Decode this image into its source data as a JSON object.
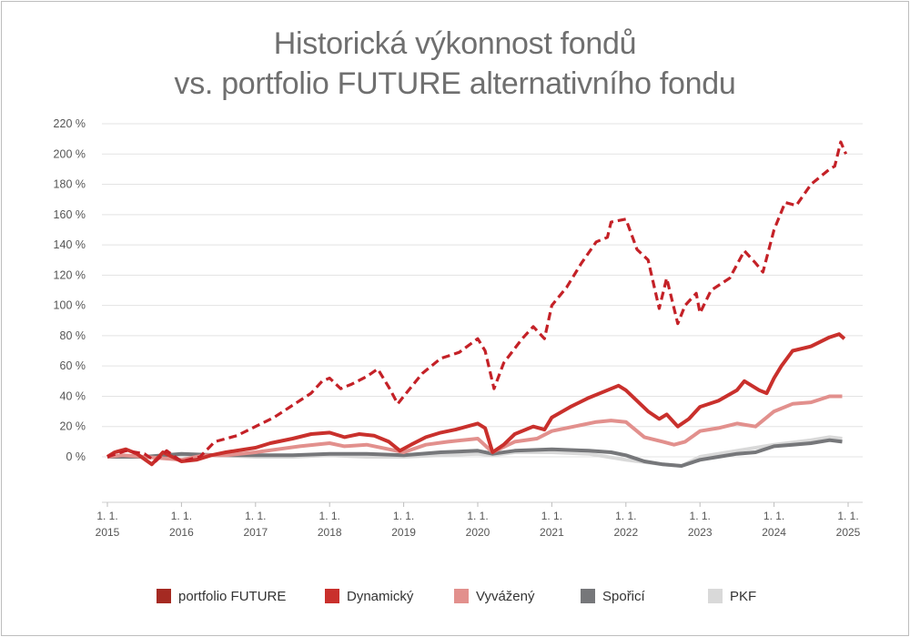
{
  "chart_data": {
    "type": "line",
    "title_lines": [
      "Historická výkonnost fondů",
      "vs. portfolio FUTURE alternativního fondu"
    ],
    "xlabel": "",
    "ylabel": "",
    "ylim": [
      0,
      220
    ],
    "xlim": [
      2015,
      2025
    ],
    "y_ticks": [
      {
        "value": 220,
        "label": "220 %"
      },
      {
        "value": 200,
        "label": "200 %"
      },
      {
        "value": 180,
        "label": "180 %"
      },
      {
        "value": 160,
        "label": "160 %"
      },
      {
        "value": 140,
        "label": "140 %"
      },
      {
        "value": 120,
        "label": "120 %"
      },
      {
        "value": 100,
        "label": "100 %"
      },
      {
        "value": 80,
        "label": "80 %"
      },
      {
        "value": 60,
        "label": "60 %"
      },
      {
        "value": 40,
        "label": "40 %"
      },
      {
        "value": 20,
        "label": "20 %"
      },
      {
        "value": 0,
        "label": "0 %"
      }
    ],
    "x_ticks": [
      {
        "value": 2015,
        "day": "1. 1.",
        "year": "2015"
      },
      {
        "value": 2016,
        "day": "1. 1.",
        "year": "2016"
      },
      {
        "value": 2017,
        "day": "1. 1.",
        "year": "2017"
      },
      {
        "value": 2018,
        "day": "1. 1.",
        "year": "2018"
      },
      {
        "value": 2019,
        "day": "1. 1.",
        "year": "2019"
      },
      {
        "value": 2020,
        "day": "1. 1.",
        "year": "2020"
      },
      {
        "value": 2021,
        "day": "1. 1.",
        "year": "2021"
      },
      {
        "value": 2022,
        "day": "1. 1.",
        "year": "2022"
      },
      {
        "value": 2023,
        "day": "1. 1.",
        "year": "2023"
      },
      {
        "value": 2024,
        "day": "1. 1.",
        "year": "2024"
      },
      {
        "value": 2025,
        "day": "1. 1.",
        "year": "2025"
      }
    ],
    "grid": "horizontal",
    "legend_position": "bottom",
    "series": [
      {
        "name": "PKF",
        "color": "#d9d9d9",
        "dashed": false,
        "points": [
          [
            2015,
            0
          ],
          [
            2015.5,
            0
          ],
          [
            2016,
            1
          ],
          [
            2016.5,
            1
          ],
          [
            2017,
            0
          ],
          [
            2017.5,
            0
          ],
          [
            2018,
            1
          ],
          [
            2018.5,
            0
          ],
          [
            2019,
            0
          ],
          [
            2019.5,
            1
          ],
          [
            2020,
            2
          ],
          [
            2020.2,
            1
          ],
          [
            2020.5,
            3
          ],
          [
            2021,
            3
          ],
          [
            2021.5,
            2
          ],
          [
            2022,
            -2
          ],
          [
            2022.5,
            -5
          ],
          [
            2022.75,
            -6
          ],
          [
            2023,
            0
          ],
          [
            2023.5,
            4
          ],
          [
            2024,
            8
          ],
          [
            2024.5,
            11
          ],
          [
            2024.75,
            13
          ],
          [
            2024.92,
            12
          ]
        ]
      },
      {
        "name": "Spořicí",
        "color": "#76777a",
        "dashed": false,
        "points": [
          [
            2015,
            0
          ],
          [
            2015.5,
            0
          ],
          [
            2016,
            2
          ],
          [
            2016.5,
            1
          ],
          [
            2017,
            1
          ],
          [
            2017.5,
            1
          ],
          [
            2018,
            2
          ],
          [
            2018.5,
            2
          ],
          [
            2019,
            1
          ],
          [
            2019.5,
            3
          ],
          [
            2020,
            4
          ],
          [
            2020.2,
            2
          ],
          [
            2020.5,
            4
          ],
          [
            2021,
            5
          ],
          [
            2021.5,
            4
          ],
          [
            2021.8,
            3
          ],
          [
            2022,
            1
          ],
          [
            2022.25,
            -3
          ],
          [
            2022.5,
            -5
          ],
          [
            2022.75,
            -6
          ],
          [
            2023,
            -2
          ],
          [
            2023.25,
            0
          ],
          [
            2023.5,
            2
          ],
          [
            2023.75,
            3
          ],
          [
            2024,
            7
          ],
          [
            2024.25,
            8
          ],
          [
            2024.5,
            9
          ],
          [
            2024.75,
            11
          ],
          [
            2024.92,
            10
          ]
        ]
      },
      {
        "name": "Vyvážený",
        "color": "#e2908d",
        "dashed": false,
        "points": [
          [
            2015,
            0
          ],
          [
            2015.2,
            1
          ],
          [
            2015.5,
            0
          ],
          [
            2016,
            -2
          ],
          [
            2016.3,
            1
          ],
          [
            2016.6,
            1
          ],
          [
            2017,
            3
          ],
          [
            2017.3,
            5
          ],
          [
            2017.6,
            7
          ],
          [
            2018,
            9
          ],
          [
            2018.2,
            7
          ],
          [
            2018.5,
            8
          ],
          [
            2018.8,
            5
          ],
          [
            2019,
            3
          ],
          [
            2019.3,
            8
          ],
          [
            2019.6,
            10
          ],
          [
            2020,
            12
          ],
          [
            2020.2,
            3
          ],
          [
            2020.5,
            10
          ],
          [
            2020.8,
            12
          ],
          [
            2021,
            17
          ],
          [
            2021.3,
            20
          ],
          [
            2021.6,
            23
          ],
          [
            2021.8,
            24
          ],
          [
            2022,
            23
          ],
          [
            2022.25,
            13
          ],
          [
            2022.5,
            10
          ],
          [
            2022.65,
            8
          ],
          [
            2022.8,
            10
          ],
          [
            2023,
            17
          ],
          [
            2023.25,
            19
          ],
          [
            2023.5,
            22
          ],
          [
            2023.75,
            20
          ],
          [
            2024,
            30
          ],
          [
            2024.25,
            35
          ],
          [
            2024.5,
            36
          ],
          [
            2024.75,
            40
          ],
          [
            2024.92,
            40
          ]
        ]
      },
      {
        "name": "Dynamický",
        "color": "#c9302c",
        "dashed": false,
        "points": [
          [
            2015,
            0
          ],
          [
            2015.1,
            3
          ],
          [
            2015.25,
            5
          ],
          [
            2015.4,
            2
          ],
          [
            2015.6,
            -5
          ],
          [
            2015.75,
            3
          ],
          [
            2016,
            -3
          ],
          [
            2016.2,
            -2
          ],
          [
            2016.4,
            1
          ],
          [
            2016.6,
            3
          ],
          [
            2017,
            6
          ],
          [
            2017.2,
            9
          ],
          [
            2017.5,
            12
          ],
          [
            2017.75,
            15
          ],
          [
            2018,
            16
          ],
          [
            2018.2,
            13
          ],
          [
            2018.4,
            15
          ],
          [
            2018.6,
            14
          ],
          [
            2018.8,
            10
          ],
          [
            2018.95,
            4
          ],
          [
            2019.1,
            8
          ],
          [
            2019.3,
            13
          ],
          [
            2019.5,
            16
          ],
          [
            2019.7,
            18
          ],
          [
            2020,
            22
          ],
          [
            2020.1,
            19
          ],
          [
            2020.2,
            3
          ],
          [
            2020.35,
            8
          ],
          [
            2020.5,
            15
          ],
          [
            2020.75,
            20
          ],
          [
            2020.9,
            18
          ],
          [
            2021,
            26
          ],
          [
            2021.25,
            33
          ],
          [
            2021.5,
            39
          ],
          [
            2021.75,
            44
          ],
          [
            2021.9,
            47
          ],
          [
            2022,
            44
          ],
          [
            2022.15,
            37
          ],
          [
            2022.3,
            30
          ],
          [
            2022.45,
            25
          ],
          [
            2022.55,
            28
          ],
          [
            2022.7,
            20
          ],
          [
            2022.85,
            25
          ],
          [
            2023,
            33
          ],
          [
            2023.25,
            37
          ],
          [
            2023.5,
            44
          ],
          [
            2023.6,
            50
          ],
          [
            2023.8,
            44
          ],
          [
            2023.9,
            42
          ],
          [
            2024,
            52
          ],
          [
            2024.1,
            60
          ],
          [
            2024.25,
            70
          ],
          [
            2024.5,
            73
          ],
          [
            2024.75,
            79
          ],
          [
            2024.88,
            81
          ],
          [
            2024.95,
            78
          ]
        ]
      },
      {
        "name": "portfolio FUTURE",
        "color": "#c42127",
        "dashed": true,
        "points": [
          [
            2015,
            0
          ],
          [
            2015.25,
            4
          ],
          [
            2015.5,
            2
          ],
          [
            2015.65,
            -3
          ],
          [
            2015.8,
            4
          ],
          [
            2016,
            -3
          ],
          [
            2016.25,
            0
          ],
          [
            2016.45,
            10
          ],
          [
            2016.75,
            14
          ],
          [
            2017,
            20
          ],
          [
            2017.25,
            26
          ],
          [
            2017.5,
            34
          ],
          [
            2017.75,
            42
          ],
          [
            2017.9,
            50
          ],
          [
            2018,
            52
          ],
          [
            2018.15,
            45
          ],
          [
            2018.3,
            48
          ],
          [
            2018.5,
            53
          ],
          [
            2018.65,
            58
          ],
          [
            2018.8,
            46
          ],
          [
            2018.92,
            35
          ],
          [
            2019,
            40
          ],
          [
            2019.25,
            55
          ],
          [
            2019.5,
            65
          ],
          [
            2019.75,
            69
          ],
          [
            2020,
            78
          ],
          [
            2020.1,
            70
          ],
          [
            2020.22,
            45
          ],
          [
            2020.35,
            62
          ],
          [
            2020.6,
            78
          ],
          [
            2020.75,
            86
          ],
          [
            2020.9,
            78
          ],
          [
            2021,
            100
          ],
          [
            2021.2,
            112
          ],
          [
            2021.4,
            128
          ],
          [
            2021.6,
            142
          ],
          [
            2021.75,
            145
          ],
          [
            2021.8,
            155
          ],
          [
            2022,
            157
          ],
          [
            2022.15,
            137
          ],
          [
            2022.3,
            130
          ],
          [
            2022.45,
            98
          ],
          [
            2022.55,
            118
          ],
          [
            2022.7,
            88
          ],
          [
            2022.8,
            100
          ],
          [
            2022.95,
            108
          ],
          [
            2023,
            95
          ],
          [
            2023.15,
            110
          ],
          [
            2023.4,
            118
          ],
          [
            2023.6,
            136
          ],
          [
            2023.75,
            128
          ],
          [
            2023.85,
            122
          ],
          [
            2024,
            150
          ],
          [
            2024.15,
            168
          ],
          [
            2024.3,
            166
          ],
          [
            2024.5,
            180
          ],
          [
            2024.75,
            190
          ],
          [
            2024.82,
            192
          ],
          [
            2024.9,
            208
          ],
          [
            2024.97,
            200
          ]
        ]
      }
    ]
  }
}
